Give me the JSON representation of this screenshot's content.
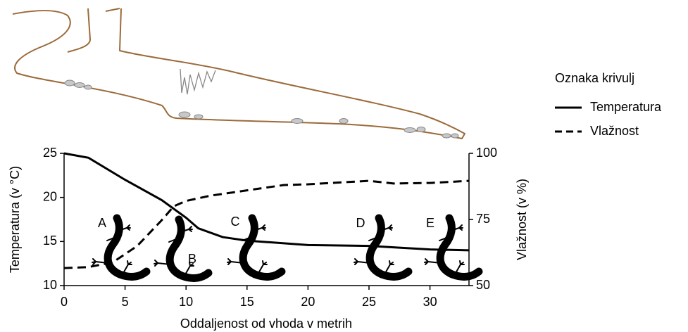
{
  "chart_data": {
    "type": "line",
    "xlabel": "Oddaljenost od vhoda v metrih",
    "ylabel": "Temperatura (v °C)",
    "y2label": "Vlažnost (v %)",
    "legend_title": "Oznaka krivulj",
    "xlim": [
      0,
      33.2
    ],
    "xticks": [
      0,
      5,
      10,
      15,
      20,
      25,
      30
    ],
    "ylim": [
      10,
      25
    ],
    "yticks": [
      10,
      15,
      20,
      25
    ],
    "y2lim": [
      50,
      100
    ],
    "y2ticks": [
      50,
      75,
      100
    ],
    "annotations": [
      "A",
      "B",
      "C",
      "D",
      "E"
    ],
    "series": [
      {
        "name": "Temperatura",
        "color": "#000000",
        "style": "solid",
        "x": [
          0,
          2,
          5,
          8,
          10,
          11,
          13,
          15,
          20,
          25,
          30,
          33.2
        ],
        "values": [
          25,
          24.5,
          22.0,
          19.7,
          17.7,
          16.5,
          15.5,
          15.1,
          14.6,
          14.5,
          14.1,
          14.0
        ]
      },
      {
        "name": "Vlažnost",
        "color": "#000000",
        "style": "dashed",
        "axis": "y2",
        "x": [
          0,
          2,
          4,
          6,
          8,
          9,
          10,
          12,
          15,
          18,
          20,
          25,
          27,
          30,
          33.2
        ],
        "values": [
          56.6,
          57,
          58.8,
          65,
          74.7,
          80,
          82,
          84,
          86,
          88,
          88.3,
          89.6,
          88.6,
          88.8,
          89.6
        ]
      }
    ]
  }
}
